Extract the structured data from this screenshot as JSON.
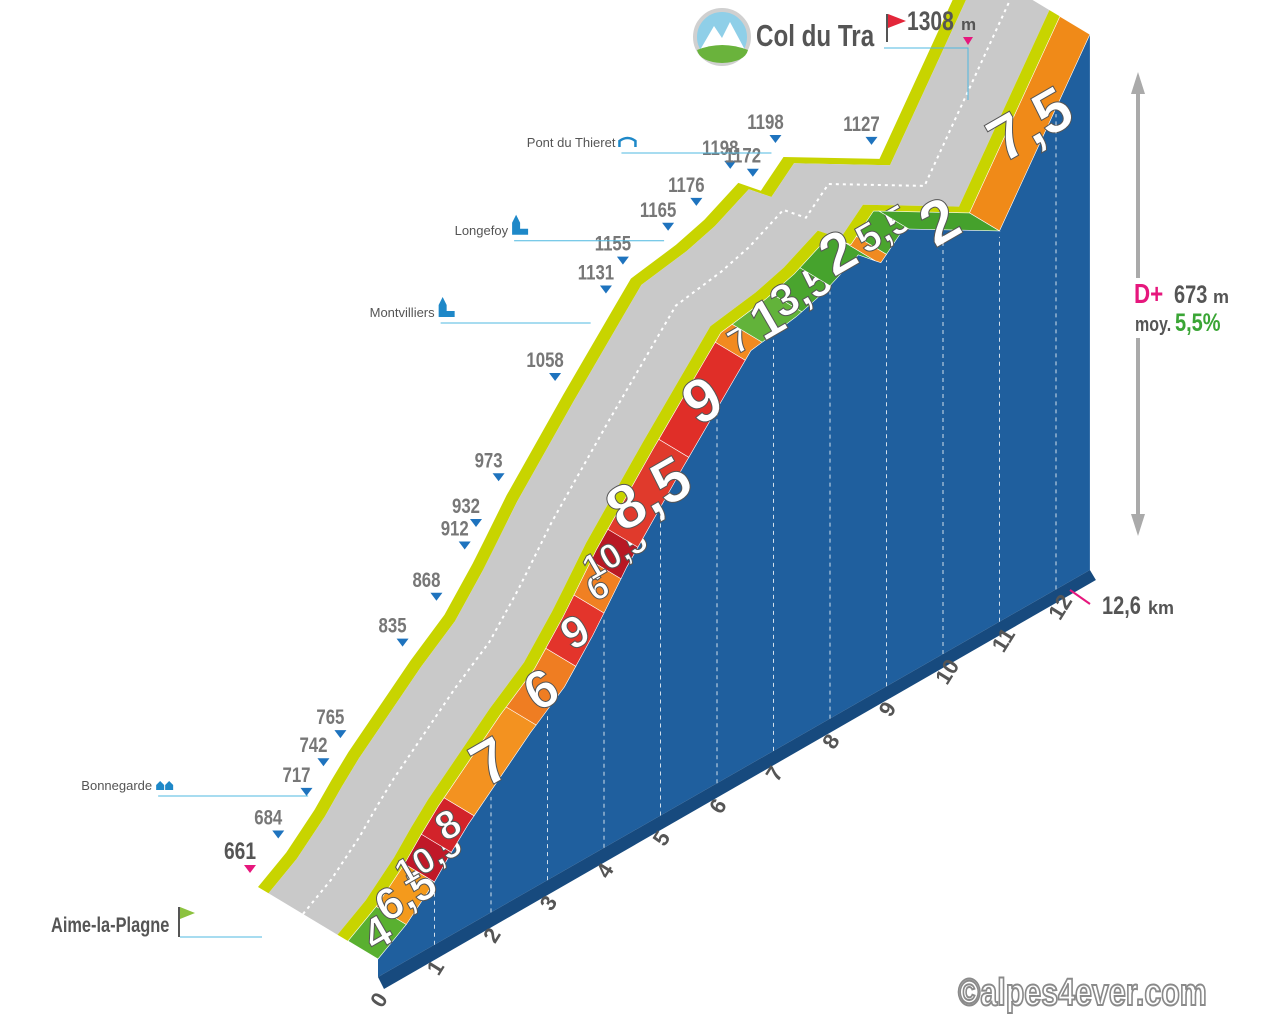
{
  "chart_data": {
    "type": "area",
    "title": "Col du Tra",
    "start": {
      "name": "Aime-la-Plagne",
      "altitude": "661"
    },
    "summit": {
      "name": "Col du Tra",
      "altitude": "1308",
      "unit": "m"
    },
    "distance": {
      "value": "12,6",
      "unit": "km"
    },
    "stats": {
      "dplus_label": "D+",
      "dplus_value": "673",
      "dplus_unit": "m",
      "avg_label": "moy.",
      "avg_value": "5,5%"
    },
    "copyright": "©alpes4ever.com",
    "km_ticks": [
      "0",
      "1",
      "2",
      "3",
      "4",
      "5",
      "6",
      "7",
      "8",
      "9",
      "10",
      "11",
      "12"
    ],
    "segments": [
      {
        "km_start": 0.0,
        "km_end": 0.5,
        "gradient": "4",
        "color": "#59b030"
      },
      {
        "km_start": 0.5,
        "km_end": 1.0,
        "gradient": "6,5",
        "color": "#f49a1c"
      },
      {
        "km_start": 1.0,
        "km_end": 1.3,
        "gradient": "10,5",
        "color": "#c01828"
      },
      {
        "km_start": 1.3,
        "km_end": 1.7,
        "gradient": "8",
        "color": "#d2232a"
      },
      {
        "km_start": 1.7,
        "km_end": 2.8,
        "gradient": "7",
        "color": "#f39220"
      },
      {
        "km_start": 2.8,
        "km_end": 3.5,
        "gradient": "6",
        "color": "#ef7d22"
      },
      {
        "km_start": 3.5,
        "km_end": 4.0,
        "gradient": "9",
        "color": "#e3342b"
      },
      {
        "km_start": 4.0,
        "km_end": 4.3,
        "gradient": "6",
        "color": "#f08022"
      },
      {
        "km_start": 4.3,
        "km_end": 4.6,
        "gradient": "10,5",
        "color": "#b81824"
      },
      {
        "km_start": 4.6,
        "km_end": 5.5,
        "gradient": "8,5",
        "color": "#e03a2c"
      },
      {
        "km_start": 5.5,
        "km_end": 6.5,
        "gradient": "9",
        "color": "#e02e28"
      },
      {
        "km_start": 6.5,
        "km_end": 6.8,
        "gradient": "7",
        "color": "#f28a20"
      },
      {
        "km_start": 6.8,
        "km_end": 7.5,
        "gradient": "1",
        "color": "#62b33a"
      },
      {
        "km_start": 7.5,
        "km_end": 8.0,
        "gradient": "3,5",
        "color": "#4aa52e"
      },
      {
        "km_start": 8.0,
        "km_end": 8.8,
        "gradient": "2",
        "color": "#46a32d"
      },
      {
        "km_start": 8.8,
        "km_end": 9.0,
        "gradient": "",
        "color": "#f08a20"
      },
      {
        "km_start": 9.0,
        "km_end": 9.4,
        "gradient": "5,5",
        "color": "#4aa52e"
      },
      {
        "km_start": 9.4,
        "km_end": 11.0,
        "gradient": "2",
        "color": "#45a12c"
      },
      {
        "km_start": 11.0,
        "km_end": 12.6,
        "gradient": "7,5",
        "color": "#f08a18"
      }
    ],
    "altitude_points": [
      {
        "km": 0.0,
        "alt": 661
      },
      {
        "km": 0.5,
        "alt": 684
      },
      {
        "km": 1.0,
        "alt": 717
      },
      {
        "km": 1.3,
        "alt": 742
      },
      {
        "km": 1.6,
        "alt": 765
      },
      {
        "km": 2.7,
        "alt": 835
      },
      {
        "km": 3.3,
        "alt": 868
      },
      {
        "km": 3.8,
        "alt": 912
      },
      {
        "km": 4.0,
        "alt": 932
      },
      {
        "km": 4.4,
        "alt": 973
      },
      {
        "km": 5.4,
        "alt": 1058
      },
      {
        "km": 6.3,
        "alt": 1131
      },
      {
        "km": 6.6,
        "alt": 1155
      },
      {
        "km": 7.4,
        "alt": 1165
      },
      {
        "km": 7.9,
        "alt": 1176
      },
      {
        "km": 8.5,
        "alt": 1198
      },
      {
        "km": 8.9,
        "alt": 1172
      },
      {
        "km": 9.3,
        "alt": 1198
      },
      {
        "km": 11.0,
        "alt": 1127
      },
      {
        "km": 12.6,
        "alt": 1308
      }
    ],
    "places": [
      {
        "name": "Bonnegarde",
        "icon": "houses-icon",
        "km": 1.1
      },
      {
        "name": "Montvilliers",
        "icon": "church-icon",
        "km": 6.1
      },
      {
        "name": "Longefoy",
        "icon": "church-icon",
        "km": 7.4
      },
      {
        "name": "Pont du Thieret",
        "icon": "bridge-icon",
        "km": 9.3
      }
    ]
  }
}
